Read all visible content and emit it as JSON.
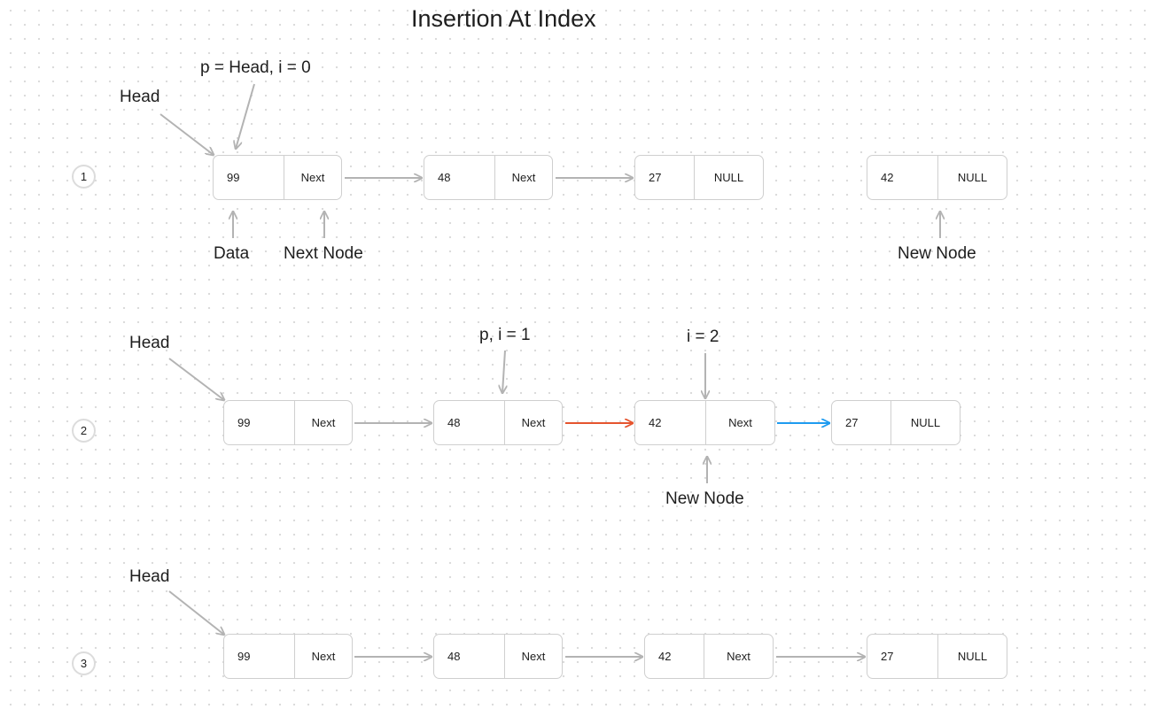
{
  "title": "Insertion At Index",
  "steps": [
    {
      "badge": "1",
      "nodes": [
        {
          "data": "99",
          "next": "Next"
        },
        {
          "data": "48",
          "next": "Next"
        },
        {
          "data": "27",
          "next": "NULL"
        },
        {
          "data": "42",
          "next": "NULL"
        }
      ],
      "labels": {
        "head": "Head",
        "pointer": "p = Head, i = 0",
        "data": "Data",
        "next_node": "Next Node",
        "new_node": "New Node"
      }
    },
    {
      "badge": "2",
      "nodes": [
        {
          "data": "99",
          "next": "Next"
        },
        {
          "data": "48",
          "next": "Next"
        },
        {
          "data": "42",
          "next": "Next"
        },
        {
          "data": "27",
          "next": "NULL"
        }
      ],
      "labels": {
        "head": "Head",
        "pointer": "p, i = 1",
        "index": "i = 2",
        "new_node": "New Node"
      }
    },
    {
      "badge": "3",
      "nodes": [
        {
          "data": "99",
          "next": "Next"
        },
        {
          "data": "48",
          "next": "Next"
        },
        {
          "data": "42",
          "next": "Next"
        },
        {
          "data": "27",
          "next": "NULL"
        }
      ],
      "labels": {
        "head": "Head"
      }
    }
  ],
  "colors": {
    "arrow": "#b3b3b3",
    "relink_arrow": "#e5542e",
    "new_link_arrow": "#1e9bf0",
    "node_border": "#cfcfcf",
    "badge_border": "#dcdcdc"
  }
}
